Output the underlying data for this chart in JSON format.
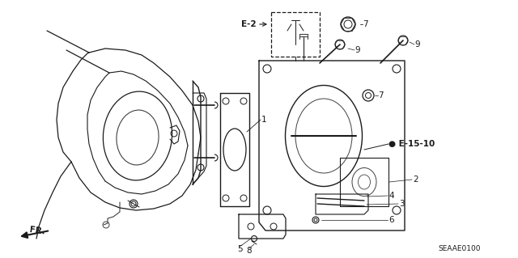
{
  "diagram_code": "SEAAE0100",
  "bg_color": "#ffffff",
  "lc": "#404040",
  "dc": "#1a1a1a",
  "figsize": [
    6.4,
    3.19
  ],
  "dpi": 100
}
